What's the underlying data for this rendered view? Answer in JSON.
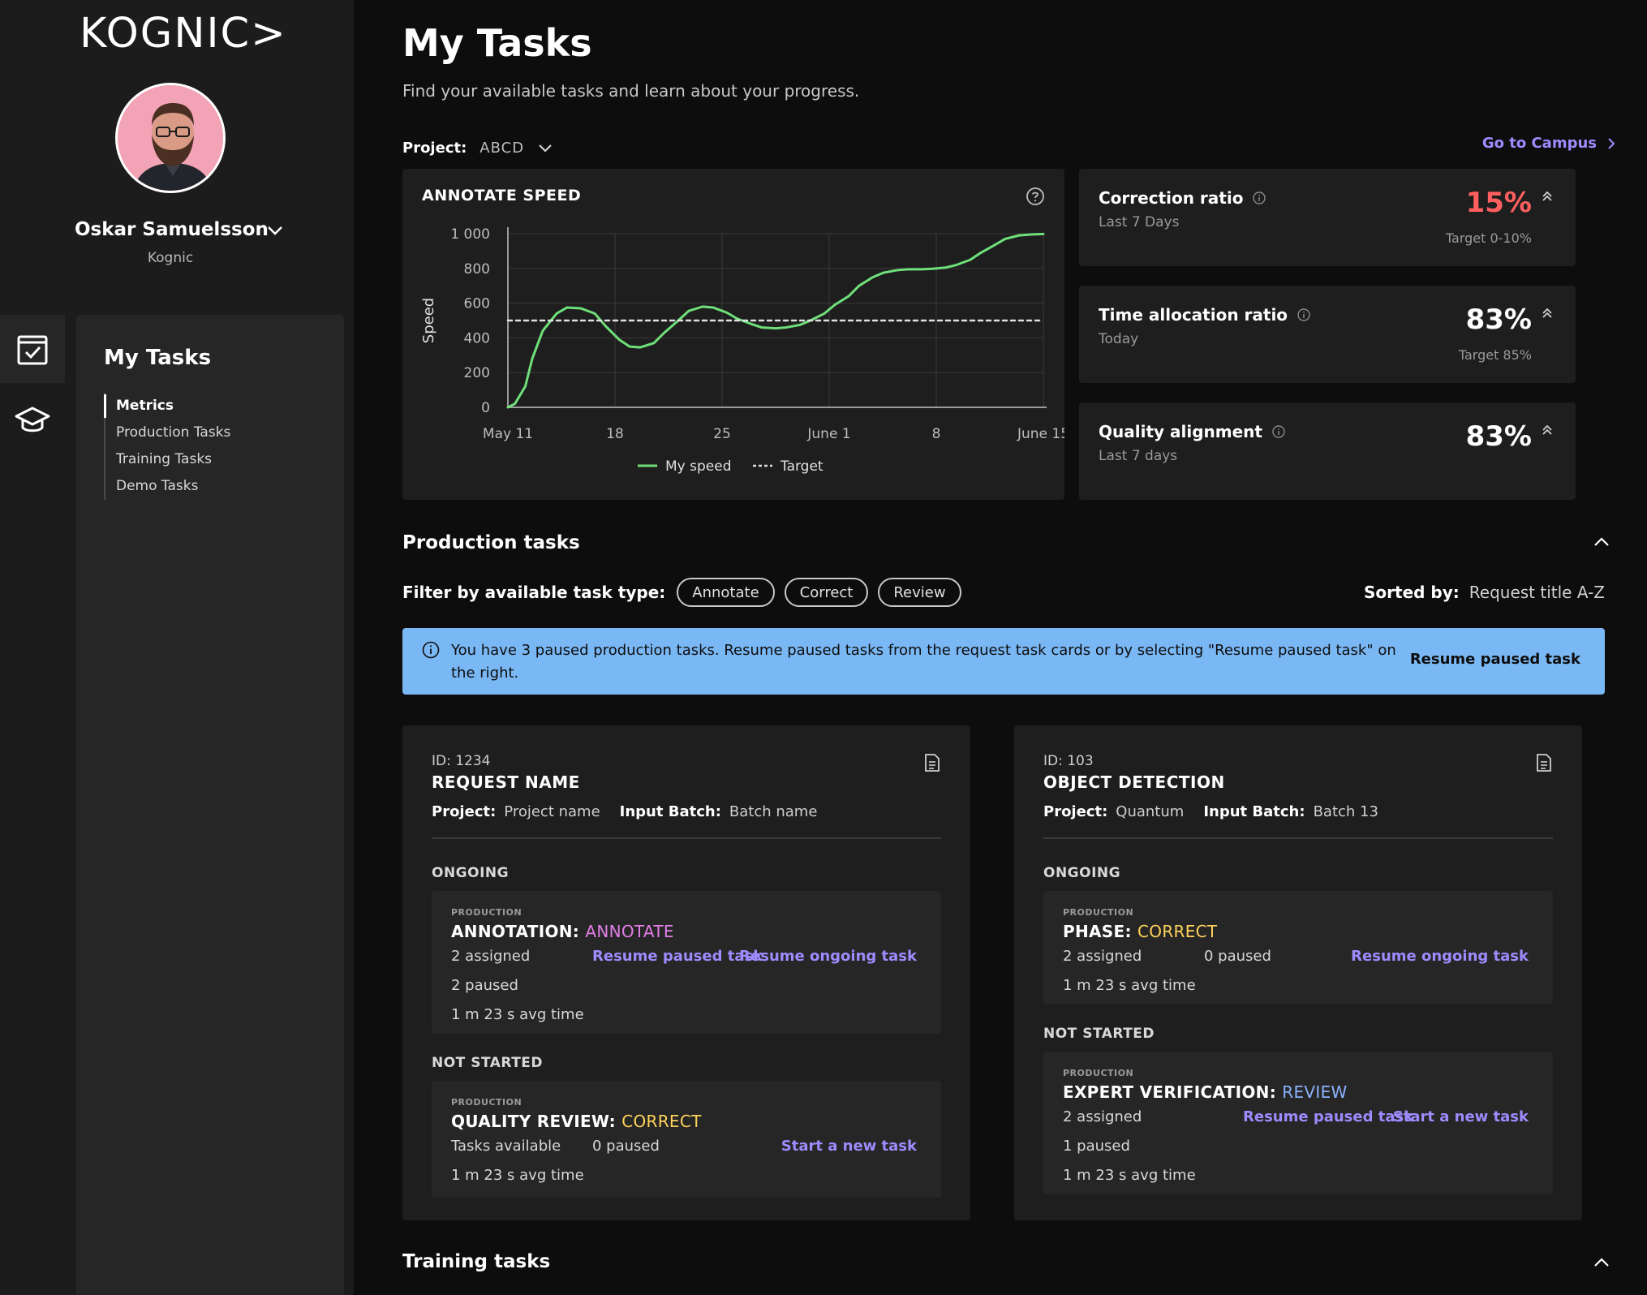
{
  "brand": {
    "logo_text": "KOGNIC>"
  },
  "user": {
    "name": "Oskar Samuelsson",
    "org": "Kognic"
  },
  "subnav": {
    "title": "My Tasks",
    "items": [
      {
        "label": "Metrics",
        "active": true
      },
      {
        "label": "Production Tasks",
        "active": false
      },
      {
        "label": "Training Tasks",
        "active": false
      },
      {
        "label": "Demo Tasks",
        "active": false
      }
    ]
  },
  "rail": [
    {
      "icon": "tasks-checkbox-icon",
      "active": true
    },
    {
      "icon": "graduation-cap-icon",
      "active": false
    }
  ],
  "header": {
    "title": "My Tasks",
    "subtitle": "Find your available tasks and learn about your progress.",
    "project_label": "Project:",
    "project_value": "ABCD",
    "campus_link": "Go to Campus"
  },
  "chart_data": {
    "type": "line",
    "title": "ANNOTATE SPEED",
    "xlabel": "",
    "ylabel": "Speed",
    "x_ticks": [
      "May 11",
      "18",
      "25",
      "June 1",
      "8",
      "June 15"
    ],
    "y_ticks": [
      "0",
      "200",
      "400",
      "600",
      "800",
      "1 000"
    ],
    "ylim": [
      0,
      1000
    ],
    "grid": true,
    "legend": "bottom",
    "series": [
      {
        "name": "My speed",
        "color": "#6ee07a",
        "style": "solid",
        "x": [
          0,
          2,
          5,
          7,
          10,
          14,
          17,
          21,
          25,
          28,
          32,
          35,
          38,
          42,
          45,
          49,
          52,
          56,
          59,
          63,
          66,
          70,
          73,
          77,
          80,
          84,
          87,
          91,
          94,
          98,
          101,
          105,
          108,
          112,
          115,
          119,
          122,
          126,
          129,
          133,
          136,
          140,
          143,
          147,
          150,
          154
        ],
        "y": [
          0,
          20,
          120,
          280,
          440,
          540,
          575,
          570,
          540,
          470,
          390,
          350,
          345,
          370,
          430,
          500,
          555,
          580,
          575,
          545,
          510,
          480,
          460,
          455,
          460,
          475,
          500,
          540,
          590,
          640,
          700,
          750,
          775,
          790,
          795,
          795,
          798,
          805,
          820,
          850,
          890,
          935,
          970,
          990,
          995,
          998
        ]
      },
      {
        "name": "Target",
        "color": "#e0e0e0",
        "style": "dashed",
        "x": [
          0,
          154
        ],
        "y": [
          500,
          500
        ]
      }
    ]
  },
  "metrics": [
    {
      "name": "Correction ratio",
      "period": "Last 7 Days",
      "value": "15%",
      "target": "Target 0-10%",
      "bad": true
    },
    {
      "name": "Time allocation ratio",
      "period": "Today",
      "value": "83%",
      "target": "Target 85%",
      "bad": false
    },
    {
      "name": "Quality alignment",
      "period": "Last 7 days",
      "value": "83%",
      "target": "",
      "bad": false
    }
  ],
  "production": {
    "title": "Production tasks",
    "filter_label": "Filter by available task type:",
    "chips": [
      "Annotate",
      "Correct",
      "Review"
    ],
    "sorted_label": "Sorted by:",
    "sorted_value": "Request title A-Z",
    "banner_text": "You have 3 paused production tasks. Resume paused tasks from the request task cards or by selecting \"Resume paused task\" on the right.",
    "banner_action": "Resume paused task"
  },
  "requests": [
    {
      "id": "ID: 1234",
      "name": "REQUEST NAME",
      "project_label": "Project:",
      "project": "Project name",
      "batch_label": "Input Batch:",
      "batch": "Batch name",
      "ongoing_label": "ONGOING",
      "ongoing": {
        "tag": "PRODUCTION",
        "title": "ANNOTATION:",
        "type": "ANNOTATE",
        "assigned": "2 assigned",
        "paused": "2 paused",
        "avg": "1 m 23 s avg time",
        "link1": "Resume paused task",
        "link2": "Resume ongoing task"
      },
      "not_started_label": "NOT STARTED",
      "not_started": {
        "tag": "PRODUCTION",
        "title": "QUALITY REVIEW:",
        "type": "CORRECT",
        "available": "Tasks available",
        "paused": "0 paused",
        "avg": "1 m 23 s avg time",
        "link": "Start a new task"
      }
    },
    {
      "id": "ID: 103",
      "name": "OBJECT DETECTION",
      "project_label": "Project:",
      "project": "Quantum",
      "batch_label": "Input Batch:",
      "batch": "Batch 13",
      "ongoing_label": "ONGOING",
      "ongoing": {
        "tag": "PRODUCTION",
        "title": "PHASE:",
        "type": "CORRECT",
        "assigned": "2 assigned",
        "paused": "0 paused",
        "avg": "1 m 23 s avg time",
        "link": "Resume ongoing task"
      },
      "not_started_label": "NOT STARTED",
      "not_started": {
        "tag": "PRODUCTION",
        "title": "EXPERT VERIFICATION:",
        "type": "REVIEW",
        "assigned": "2 assigned",
        "paused": "1 paused",
        "avg": "1 m 23 s avg time",
        "link1": "Resume paused task",
        "link2": "Start a new task"
      }
    }
  ],
  "training": {
    "title": "Training tasks"
  }
}
